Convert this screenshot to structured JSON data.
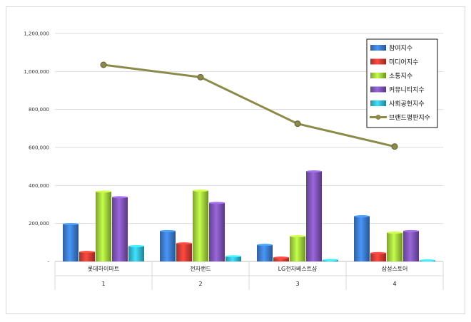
{
  "chart_data": {
    "type": "bar",
    "categories": [
      "롯데하이마트",
      "전자랜드",
      "LG전자베스트샵",
      "삼성스토어"
    ],
    "category_numbers": [
      "1",
      "2",
      "3",
      "4"
    ],
    "ylim": [
      0,
      1200000
    ],
    "y_ticks": [
      "-",
      "200,000",
      "400,000",
      "600,000",
      "800,000",
      "1,000,000",
      "1,200,000"
    ],
    "y_tick_values": [
      0,
      200000,
      400000,
      600000,
      800000,
      1000000,
      1200000
    ],
    "grid": true,
    "legend_position": "top-right",
    "series": [
      {
        "name": "참여지수",
        "type": "bar",
        "color": "#3a78c8",
        "values": [
          197000,
          160000,
          87000,
          238000
        ]
      },
      {
        "name": "미디어지수",
        "type": "bar",
        "color": "#cf3b34",
        "values": [
          50000,
          95000,
          20000,
          44000
        ]
      },
      {
        "name": "소통지수",
        "type": "bar",
        "color": "#9dcb3c",
        "values": [
          368000,
          373000,
          133000,
          152000
        ]
      },
      {
        "name": "커뮤니티지수",
        "type": "bar",
        "color": "#7b52b0",
        "values": [
          338000,
          308000,
          474000,
          160000
        ]
      },
      {
        "name": "사회공헌지수",
        "type": "bar",
        "color": "#33b5cc",
        "values": [
          81000,
          27000,
          8000,
          6000
        ]
      },
      {
        "name": "브랜드평판지수",
        "type": "line",
        "color": "#8c8a4a",
        "values": [
          1035000,
          970000,
          725000,
          605000
        ]
      }
    ]
  }
}
